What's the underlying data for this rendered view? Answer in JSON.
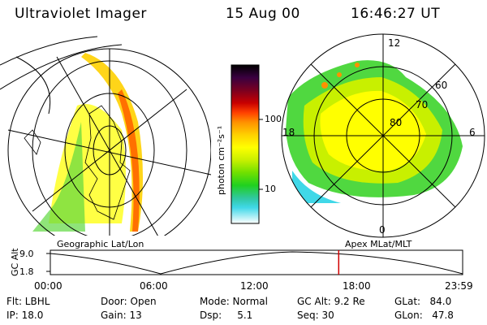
{
  "header": {
    "title": "Ultraviolet Imager",
    "date": "15 Aug 00",
    "time": "16:46:27 UT"
  },
  "colorbar": {
    "unit_label": "photon cm⁻²s⁻¹",
    "ticks": [
      "100",
      "10"
    ],
    "colors": [
      "#000000",
      "#3a0040",
      "#7a0020",
      "#c80000",
      "#ff4000",
      "#ff9000",
      "#ffd000",
      "#ffff00",
      "#c8f000",
      "#70e000",
      "#20d020",
      "#30c8a0",
      "#40d8e8",
      "#b0e8f0",
      "#ffffff"
    ]
  },
  "polar": {
    "lat_labels": [
      "60",
      "70",
      "80"
    ],
    "mlt_labels": {
      "top": "12",
      "left": "18",
      "right": "6",
      "bottom": "0"
    }
  },
  "projections": {
    "left": "Geographic Lat/Lon",
    "right": "Apex MLat/MLT"
  },
  "altitude_plot": {
    "ylabel": "GC Alt",
    "yticks": [
      "9.0",
      "1.8"
    ],
    "xticks": [
      "00:00",
      "06:00",
      "12:00",
      "18:00",
      "23:59"
    ],
    "marker_color": "#d00000",
    "marker_time_hours": 16.774
  },
  "info": {
    "flt": "Flt: LBHL",
    "ip": "IP: 18.0",
    "door": "Door: Open",
    "gain": "Gain: 13",
    "mode": "Mode: Normal",
    "dsp": "Dsp:     5.1",
    "gcalt": "GC Alt: 9.2 Re",
    "seq": "Seq: 30",
    "glat": "GLat:   84.0",
    "glon": "GLon:   47.8"
  }
}
